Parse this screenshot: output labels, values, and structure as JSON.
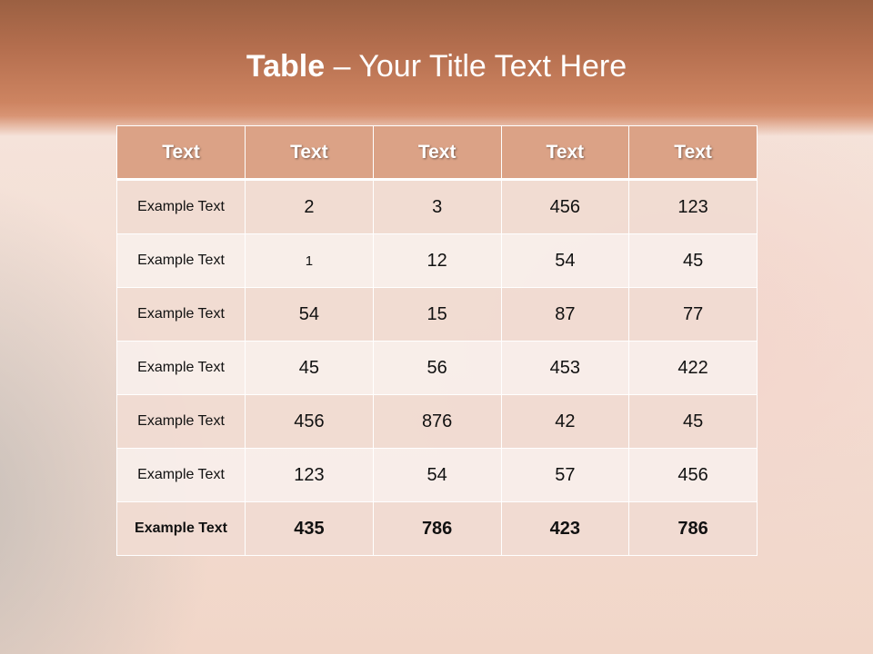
{
  "title": {
    "bold": "Table",
    "rest": " – Your Title Text Here"
  },
  "table": {
    "headers": [
      "Text",
      "Text",
      "Text",
      "Text",
      "Text"
    ],
    "rows": [
      [
        "Example Text",
        "2",
        "3",
        "456",
        "123"
      ],
      [
        "Example Text",
        "1",
        "12",
        "54",
        "45"
      ],
      [
        "Example Text",
        "54",
        "15",
        "87",
        "77"
      ],
      [
        "Example Text",
        "45",
        "56",
        "453",
        "422"
      ],
      [
        "Example Text",
        "456",
        "876",
        "42",
        "45"
      ],
      [
        "Example Text",
        "123",
        "54",
        "57",
        "456"
      ],
      [
        "Example Text",
        "435",
        "786",
        "423",
        "786"
      ]
    ]
  },
  "colors": {
    "header": "#dba286",
    "band": "#cd8461",
    "row_odd": "#f0dbd2",
    "row_even": "#f8eeea"
  }
}
